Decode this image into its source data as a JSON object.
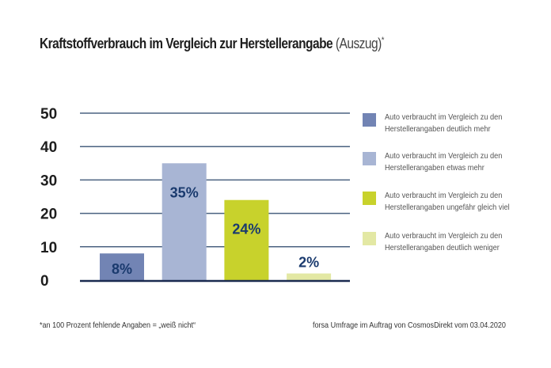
{
  "title": {
    "main": "Kraftstoffverbrauch im Vergleich zur Herstellerangabe",
    "suffix": "(Auszug)",
    "marker": "*"
  },
  "chart_data": {
    "type": "bar",
    "title": "Kraftstoffverbrauch im Vergleich zur Herstellerangabe (Auszug)*",
    "xlabel": "",
    "ylabel": "",
    "ylim": [
      0,
      50
    ],
    "yticks": [
      0,
      10,
      20,
      30,
      40,
      50
    ],
    "grid": true,
    "legend_position": "right",
    "categories": [
      "Auto verbraucht im Vergleich zu den Herstellerangaben deutlich mehr",
      "Auto verbraucht im Vergleich zu den Herstellerangaben etwas mehr",
      "Auto verbraucht im Vergleich zu den Herstellerangaben ungefähr gleich viel",
      "Auto verbraucht im Vergleich zu den Herstellerangaben deutlich weniger"
    ],
    "values": [
      8,
      35,
      24,
      2
    ],
    "data_labels": [
      "8%",
      "35%",
      "24%",
      "2%"
    ],
    "colors": [
      "#7284b4",
      "#a8b5d4",
      "#c8d22c",
      "#e3e8a4"
    ],
    "label_color": "#1a3a6e",
    "grid_color": "#4a6280",
    "axis_color": "#1a2a50"
  },
  "legend": [
    {
      "line1": "Auto verbraucht im Vergleich zu den",
      "line2": "Herstellerangaben deutlich mehr",
      "color": "#7284b4"
    },
    {
      "line1": "Auto verbraucht im Vergleich zu den",
      "line2": "Herstellerangaben etwas mehr",
      "color": "#a8b5d4"
    },
    {
      "line1": "Auto verbraucht im Vergleich zu den",
      "line2": "Herstellerangaben ungefähr gleich viel",
      "color": "#c8d22c"
    },
    {
      "line1": "Auto verbraucht im Vergleich zu den",
      "line2": "Herstellerangaben deutlich weniger",
      "color": "#e3e8a4"
    }
  ],
  "footnote": "*an 100 Prozent fehlende Angaben = „weiß nicht“",
  "source": "forsa Umfrage im Auftrag von CosmosDirekt vom 03.04.2020"
}
